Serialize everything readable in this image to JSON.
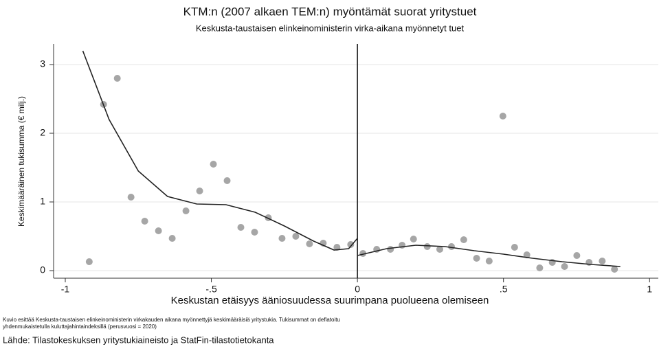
{
  "chart_data": {
    "type": "scatter",
    "title": "KTM:n (2007 alkaen TEM:n) myöntämät suorat yritystuet",
    "subtitle": "Keskusta-taustaisen elinkeinoministerin virka-aikana myönnetyt tuet",
    "x_label": "Keskustan etäisyys ääniosuudessa suurimpana puolueena olemiseen",
    "y_label": "Keskimääräinen tukisumma (€ milj.)",
    "note": [
      "Kuvio esittää Keskusta-taustaisen elinkeinoministerin virkakauden aikana myönnettyjä keskimääräisiä yritystukia. Tukisummat on deflatoitu",
      "yhdenmukaistetulla kuluttajahintaindeksillä (perusvuosi = 2020)"
    ],
    "source": "Lähde: Tilastokeskuksen yritystukiaineisto ja StatFin-tilastotietokanta",
    "xlim": [
      -1.04,
      1.03
    ],
    "ylim": [
      -0.11,
      3.3
    ],
    "xticks": [
      -1,
      {
        "value": -0.5,
        "label": "-.5"
      },
      0,
      {
        "value": 0.5,
        "label": ".5"
      },
      1
    ],
    "yticks": [
      0,
      1,
      2,
      3
    ],
    "grid": true,
    "vline": 0,
    "series": [
      {
        "style": "points",
        "color": "#a6a6a6",
        "x": [
          -0.918,
          -0.869,
          -0.822,
          -0.775,
          -0.728,
          -0.681,
          -0.634,
          -0.587,
          -0.54,
          -0.493,
          -0.446,
          -0.399,
          -0.352,
          -0.305,
          -0.258,
          -0.211,
          -0.164,
          -0.117,
          -0.07,
          -0.023,
          0.019,
          0.066,
          0.113,
          0.153,
          0.192,
          0.239,
          0.282,
          0.322,
          0.364,
          0.408,
          0.451,
          0.498,
          0.538,
          0.58,
          0.624,
          0.667,
          0.709,
          0.751,
          0.793,
          0.838,
          0.88
        ],
        "values": [
          0.13,
          2.42,
          2.8,
          1.07,
          0.72,
          0.58,
          0.47,
          0.87,
          1.16,
          1.55,
          1.31,
          0.63,
          0.56,
          0.77,
          0.47,
          0.5,
          0.39,
          0.4,
          0.34,
          0.38,
          0.25,
          0.31,
          0.31,
          0.37,
          0.46,
          0.35,
          0.31,
          0.35,
          0.45,
          0.18,
          0.14,
          2.25,
          0.34,
          0.23,
          0.04,
          0.12,
          0.06,
          0.22,
          0.12,
          0.14,
          0.02
        ]
      },
      {
        "style": "line",
        "color": "#222222",
        "x": [
          -0.94,
          -0.85,
          -0.75,
          -0.65,
          -0.55,
          -0.45,
          -0.35,
          -0.25,
          -0.15,
          -0.08,
          -0.03,
          0
        ],
        "values": [
          3.2,
          2.2,
          1.45,
          1.08,
          0.97,
          0.96,
          0.85,
          0.65,
          0.43,
          0.3,
          0.32,
          0.47
        ]
      },
      {
        "style": "line",
        "color": "#222222",
        "x": [
          0,
          0.1,
          0.2,
          0.3,
          0.4,
          0.5,
          0.6,
          0.7,
          0.8,
          0.9
        ],
        "values": [
          0.22,
          0.32,
          0.37,
          0.35,
          0.29,
          0.24,
          0.18,
          0.13,
          0.09,
          0.06
        ]
      }
    ]
  }
}
